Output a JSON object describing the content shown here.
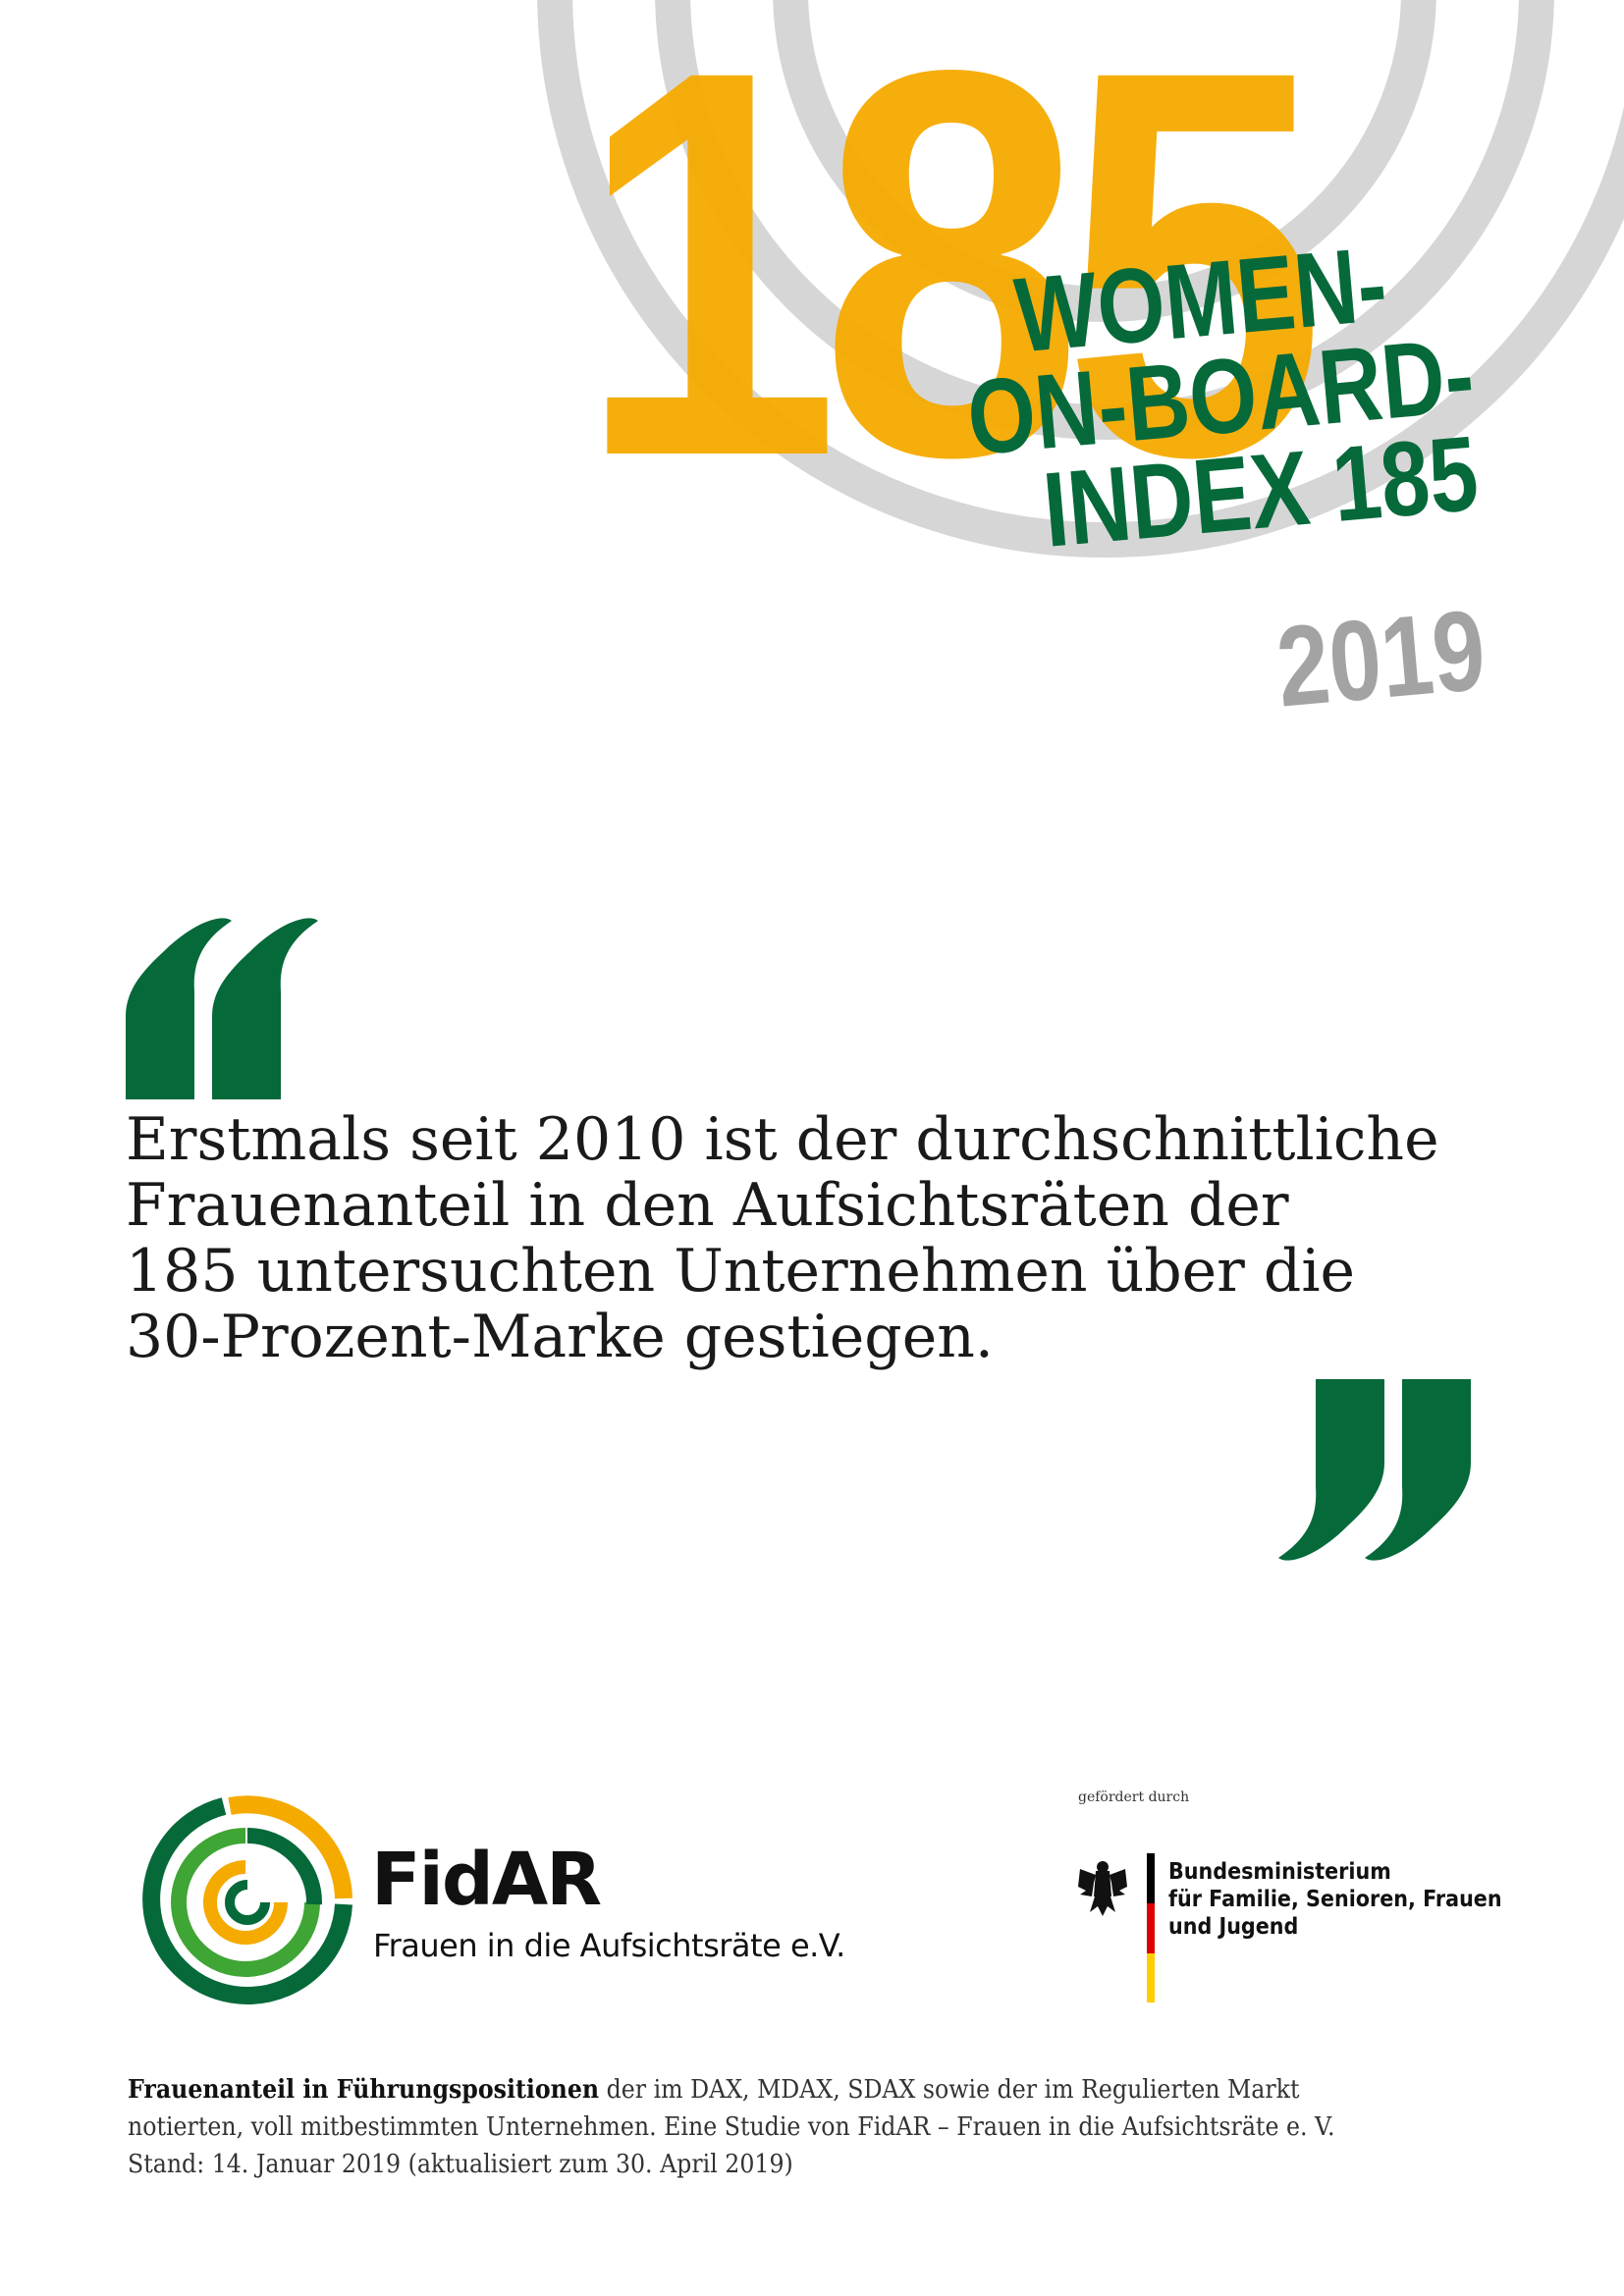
{
  "header": {
    "big_number": "185",
    "title_lines": [
      "WOMEN-",
      "ON-BOARD-",
      "INDEX 185"
    ],
    "year": "2019"
  },
  "quote": {
    "lines": [
      "Erstmals seit 2010 ist der durchschnittliche",
      "Frauenanteil in den Aufsichtsräten der",
      "185 untersuchten Unternehmen über die",
      "30-Prozent-Marke gestiegen."
    ]
  },
  "logos": {
    "fidar_name": "FidAR",
    "fidar_subtitle": "Frauen in die Aufsichtsräte e.V.",
    "gefoerdert": "gefördert durch",
    "ministry_lines": [
      "Bundesministerium",
      "für Familie, Senioren, Frauen",
      "und Jugend"
    ]
  },
  "footer": {
    "bold_lead": "Frauenanteil in Führungspositionen",
    "line1_rest": " der im DAX, MDAX, SDAX sowie der im Regulierten Markt",
    "line2": "notierten, voll mitbestimmten Unternehmen. Eine Studie von FidAR – Frauen in die Aufsichtsräte e. V.",
    "line3": "Stand: 14. Januar 2019 (aktualisiert zum 30. April 2019)"
  },
  "colors": {
    "green": "#06693a",
    "yellow": "#f5aa00",
    "grey": "#a3a3a3",
    "light_green": "#3fa535"
  }
}
